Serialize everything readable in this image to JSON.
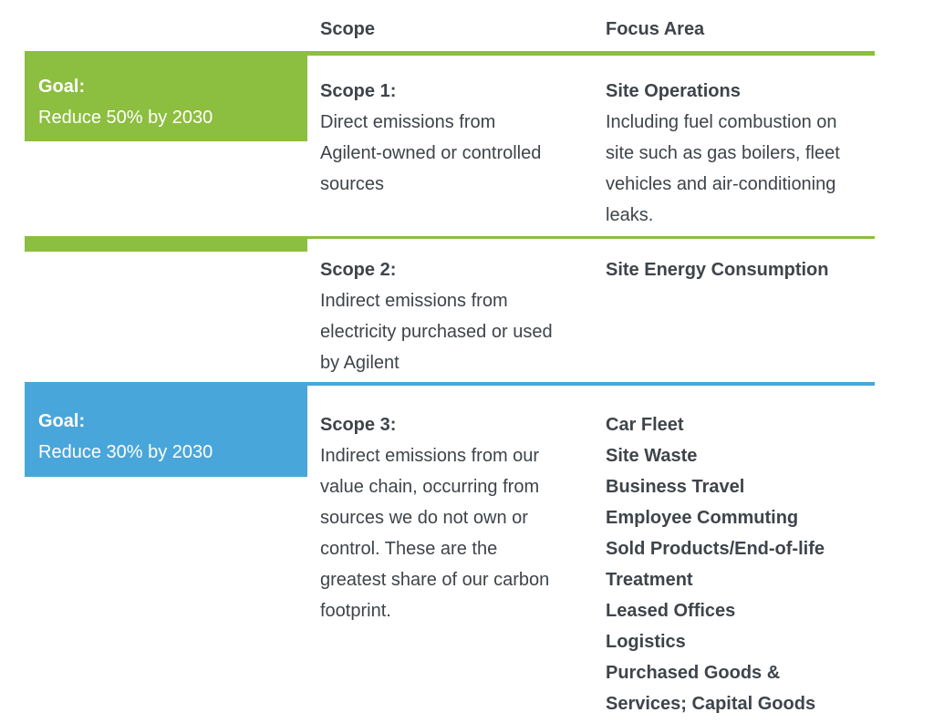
{
  "colors": {
    "green_accent": "#8cbe3f",
    "blue_accent": "#49a6da",
    "text": "#3e444a",
    "goal_text": "#ffffff"
  },
  "header": {
    "scope": "Scope",
    "focus_area": "Focus Area"
  },
  "rows": [
    {
      "goal": {
        "label": "Goal:",
        "value": "Reduce 50% by 2030"
      },
      "scope": {
        "title": "Scope 1:",
        "description": "Direct emissions from Agilent-owned or controlled sources"
      },
      "focus": {
        "title": "Site Operations",
        "description": "Including fuel combustion on site such as gas boilers, fleet vehicles and air-conditioning leaks."
      }
    },
    {
      "scope": {
        "title": "Scope 2:",
        "description": "Indirect emissions from electricity purchased or used by Agilent"
      },
      "focus": {
        "title": "Site Energy Consumption"
      }
    },
    {
      "goal": {
        "label": "Goal:",
        "value": "Reduce 30% by 2030"
      },
      "scope": {
        "title": "Scope 3:",
        "description": "Indirect emissions from our value chain, occurring from sources we do not own or control. These are the greatest share of our carbon footprint."
      },
      "focus": {
        "items": [
          "Car Fleet",
          "Site Waste",
          "Business Travel",
          "Employee Commuting",
          "Sold Products/End-of-life Treatment",
          "Leased Offices",
          "Logistics",
          "Purchased Goods & Services; Capital Goods"
        ]
      }
    }
  ]
}
